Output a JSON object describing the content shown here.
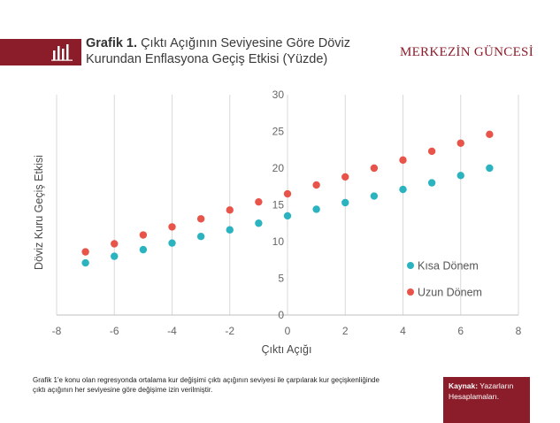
{
  "header": {
    "title_label": "Grafik 1.",
    "title_text": "Çıktı Açığının Seviyesine Göre Döviz Kurundan Enflasyona Geçiş Etkisi (Yüzde)",
    "brand": "MERKEZİN GÜNCESİ",
    "accent_color": "#8b1d2b",
    "icon": "bar-chart-icon"
  },
  "chart_data": {
    "type": "scatter",
    "xlabel": "Çıktı Açığı",
    "ylabel": "Döviz Kuru Geçiş Etkisi",
    "xlim": [
      -8,
      8
    ],
    "ylim": [
      0,
      30
    ],
    "xticks": [
      -8,
      -6,
      -4,
      -2,
      0,
      2,
      4,
      6,
      8
    ],
    "yticks": [
      0,
      5,
      10,
      15,
      20,
      25,
      30
    ],
    "grid": "vertical",
    "legend_position": "right",
    "series": [
      {
        "name": "Kısa Dönem",
        "color": "#2bb3c0",
        "x": [
          -7,
          -6,
          -5,
          -4,
          -3,
          -2,
          -1,
          0,
          1,
          2,
          3,
          4,
          5,
          6,
          7
        ],
        "y": [
          7.1,
          8.0,
          8.9,
          9.8,
          10.7,
          11.6,
          12.5,
          13.5,
          14.4,
          15.3,
          16.2,
          17.1,
          18.0,
          19.0,
          20.0
        ]
      },
      {
        "name": "Uzun Dönem",
        "color": "#e8544a",
        "x": [
          -7,
          -6,
          -5,
          -4,
          -3,
          -2,
          -1,
          0,
          1,
          2,
          3,
          4,
          5,
          6,
          7
        ],
        "y": [
          8.6,
          9.7,
          10.9,
          12.0,
          13.1,
          14.3,
          15.4,
          16.5,
          17.7,
          18.8,
          20.0,
          21.1,
          22.3,
          23.4,
          24.6
        ]
      }
    ]
  },
  "footer": {
    "note": "Grafik 1'e konu olan regresyonda ortalama kur değişimi çıktı açığının seviyesi ile çarpılarak kur geçişkenliğinde çıktı açığının her seviyesine göre değişime izin verilmiştir.",
    "source_label": "Kaynak:",
    "source_text": "Yazarların Hesaplamaları."
  }
}
